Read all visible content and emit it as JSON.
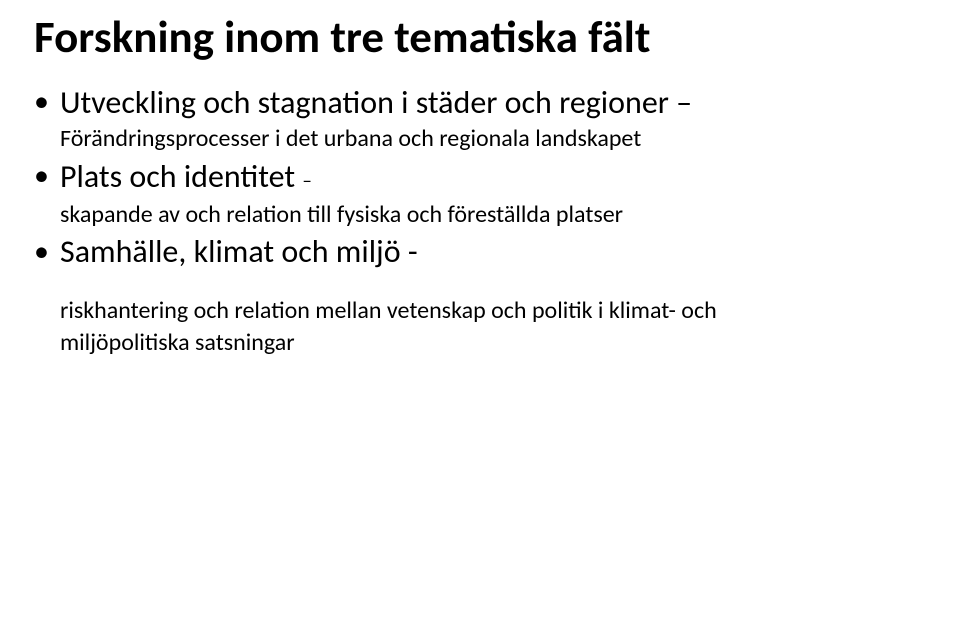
{
  "title": "Forskning inom tre tematiska fält",
  "bullets": {
    "b1_main_before": "Utveckling och stagnation i städer och regioner",
    "b1_dash": " – ",
    "b1_sub": "Förändringsprocesser i det urbana och regionala landskapet",
    "b2_main": "Plats och identitet ",
    "b2_dash": "–",
    "b2_sub": "skapande av och relation till fysiska och föreställda platser",
    "b3_main": "Samhälle, klimat och miljö  -",
    "b3_sub_line1": "riskhantering och relation mellan vetenskap och politik i klimat- och",
    "b3_sub_line2": "miljöpolitiska satsningar"
  },
  "colors": {
    "text": "#000000",
    "background": "#ffffff"
  },
  "typography": {
    "title_fontsize_pt": 34,
    "bullet_main_fontsize_pt": 24,
    "bullet_sub_fontsize_pt": 18,
    "font_family": "Calibri"
  }
}
